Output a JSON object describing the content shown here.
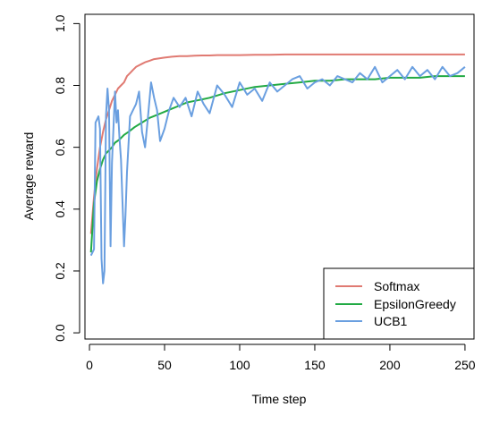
{
  "chart_data": {
    "type": "line",
    "title": "",
    "xlabel": "Time step",
    "ylabel": "Average reward",
    "xlim": [
      -3,
      256
    ],
    "ylim": [
      -0.02,
      1.03
    ],
    "x_ticks": [
      0,
      50,
      100,
      150,
      200,
      250
    ],
    "x_tick_labels": [
      "0",
      "50",
      "100",
      "150",
      "200",
      "250"
    ],
    "y_ticks": [
      0.0,
      0.2,
      0.4,
      0.6,
      0.8,
      1.0
    ],
    "y_tick_labels": [
      "0.0",
      "0.2",
      "0.4",
      "0.6",
      "0.8",
      "1.0"
    ],
    "grid": false,
    "legend_position": "bottom-right",
    "series": [
      {
        "name": "Softmax",
        "color": "#e07a72",
        "x": [
          1,
          3,
          5,
          7,
          9,
          11,
          13,
          15,
          17,
          19,
          21,
          23,
          25,
          27,
          29,
          31,
          33,
          35,
          37,
          40,
          43,
          46,
          50,
          55,
          60,
          65,
          70,
          75,
          80,
          85,
          90,
          95,
          100,
          110,
          120,
          130,
          140,
          150,
          160,
          170,
          180,
          190,
          200,
          210,
          220,
          230,
          240,
          250
        ],
        "y": [
          0.32,
          0.44,
          0.53,
          0.6,
          0.65,
          0.69,
          0.72,
          0.75,
          0.77,
          0.79,
          0.8,
          0.81,
          0.83,
          0.84,
          0.85,
          0.86,
          0.865,
          0.87,
          0.875,
          0.88,
          0.885,
          0.887,
          0.89,
          0.893,
          0.895,
          0.895,
          0.896,
          0.897,
          0.897,
          0.898,
          0.898,
          0.898,
          0.898,
          0.899,
          0.899,
          0.9,
          0.9,
          0.9,
          0.9,
          0.9,
          0.9,
          0.9,
          0.9,
          0.9,
          0.9,
          0.9,
          0.9,
          0.9
        ]
      },
      {
        "name": "EpsilonGreedy",
        "color": "#22aa44",
        "x": [
          1,
          3,
          5,
          7,
          9,
          11,
          13,
          15,
          17,
          20,
          23,
          26,
          30,
          35,
          40,
          45,
          50,
          55,
          60,
          65,
          70,
          75,
          80,
          90,
          100,
          110,
          120,
          130,
          140,
          150,
          160,
          170,
          180,
          190,
          200,
          210,
          220,
          230,
          240,
          250
        ],
        "y": [
          0.26,
          0.42,
          0.49,
          0.53,
          0.56,
          0.58,
          0.59,
          0.6,
          0.615,
          0.625,
          0.64,
          0.65,
          0.665,
          0.68,
          0.695,
          0.705,
          0.715,
          0.725,
          0.735,
          0.745,
          0.75,
          0.755,
          0.76,
          0.775,
          0.785,
          0.795,
          0.8,
          0.805,
          0.81,
          0.815,
          0.815,
          0.82,
          0.82,
          0.82,
          0.825,
          0.825,
          0.825,
          0.83,
          0.83,
          0.83
        ]
      },
      {
        "name": "UCB1",
        "color": "#6a9fe0",
        "x": [
          1,
          3,
          4,
          6,
          7,
          8,
          9,
          10,
          11,
          12,
          13,
          14,
          15,
          17,
          18,
          19,
          20,
          21,
          22,
          23,
          24,
          25,
          27,
          29,
          31,
          33,
          35,
          37,
          39,
          41,
          43,
          45,
          47,
          50,
          53,
          56,
          60,
          64,
          68,
          72,
          76,
          80,
          85,
          90,
          95,
          100,
          105,
          110,
          115,
          120,
          125,
          130,
          135,
          140,
          145,
          150,
          155,
          160,
          165,
          170,
          175,
          180,
          185,
          190,
          195,
          200,
          205,
          210,
          215,
          220,
          225,
          230,
          235,
          240,
          245,
          250
        ],
        "y": [
          0.25,
          0.27,
          0.68,
          0.7,
          0.66,
          0.24,
          0.16,
          0.2,
          0.7,
          0.79,
          0.72,
          0.28,
          0.55,
          0.78,
          0.68,
          0.72,
          0.63,
          0.56,
          0.42,
          0.28,
          0.38,
          0.52,
          0.7,
          0.72,
          0.74,
          0.78,
          0.65,
          0.6,
          0.7,
          0.81,
          0.76,
          0.72,
          0.62,
          0.66,
          0.72,
          0.76,
          0.73,
          0.76,
          0.7,
          0.78,
          0.74,
          0.71,
          0.8,
          0.77,
          0.73,
          0.81,
          0.77,
          0.79,
          0.75,
          0.81,
          0.78,
          0.8,
          0.82,
          0.83,
          0.79,
          0.81,
          0.82,
          0.8,
          0.83,
          0.82,
          0.81,
          0.84,
          0.82,
          0.86,
          0.81,
          0.83,
          0.85,
          0.82,
          0.86,
          0.83,
          0.85,
          0.82,
          0.86,
          0.83,
          0.84,
          0.86
        ]
      }
    ]
  }
}
